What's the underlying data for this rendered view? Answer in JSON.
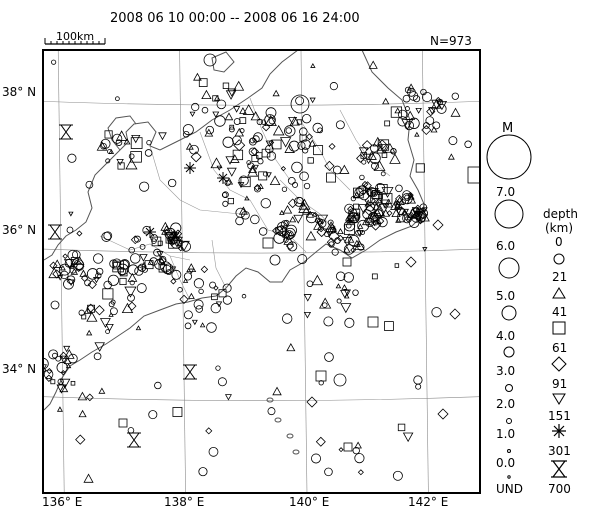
{
  "header": {
    "period": "2008 06 10 00:00 -- 2008 06 16 24:00",
    "scale_label": "100km",
    "count": "N=973"
  },
  "map": {
    "lat_labels": [
      "38° N",
      "36° N",
      "34° N"
    ],
    "lon_labels": [
      "136° E",
      "138° E",
      "140° E",
      "142° E"
    ],
    "lat_ticks": [
      38,
      36,
      34
    ],
    "lon_ticks": [
      136,
      138,
      140,
      142
    ],
    "lon_range": [
      135.7,
      142.9
    ],
    "lat_range": [
      32.75,
      38.75
    ]
  },
  "legend": {
    "magnitude_title": "M",
    "magnitudes": [
      "7.0",
      "6.0",
      "5.0",
      "4.0",
      "3.0",
      "2.0",
      "1.0",
      "0.0"
    ],
    "depth_title": "depth",
    "depth_unit": "(km)",
    "depths": [
      "0",
      "21",
      "41",
      "61",
      "91",
      "151",
      "301",
      "700"
    ],
    "und_label": "UND"
  },
  "colors": {
    "ink": "#000000",
    "coast": "#555555",
    "border": "#999999",
    "grid": "#8a8a8a"
  }
}
